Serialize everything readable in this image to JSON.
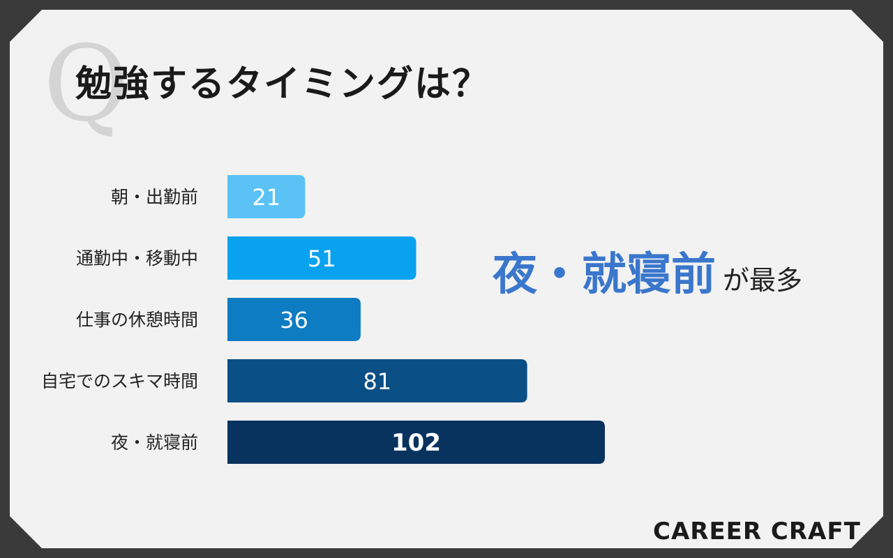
{
  "title": "勉強するタイミングは？",
  "watermark": "Q",
  "highlight": {
    "main": "夜・就寝前",
    "sub": "が最多"
  },
  "brand": "CAREER CRAFT",
  "colors": {
    "background": "#3a3a3a",
    "card": "#f2f2f2",
    "highlight": "#3a77cc",
    "bars": [
      "#5ac2f5",
      "#09a2ef",
      "#0e7cc2",
      "#0a4f85",
      "#09335f"
    ]
  },
  "chart_data": {
    "type": "bar",
    "orientation": "horizontal",
    "categories": [
      "朝・出勤前",
      "通勤中・移動中",
      "仕事の休憩時間",
      "自宅でのスキマ時間",
      "夜・就寝前"
    ],
    "values": [
      21,
      51,
      36,
      81,
      102
    ],
    "grid": false,
    "data_labels": true
  }
}
